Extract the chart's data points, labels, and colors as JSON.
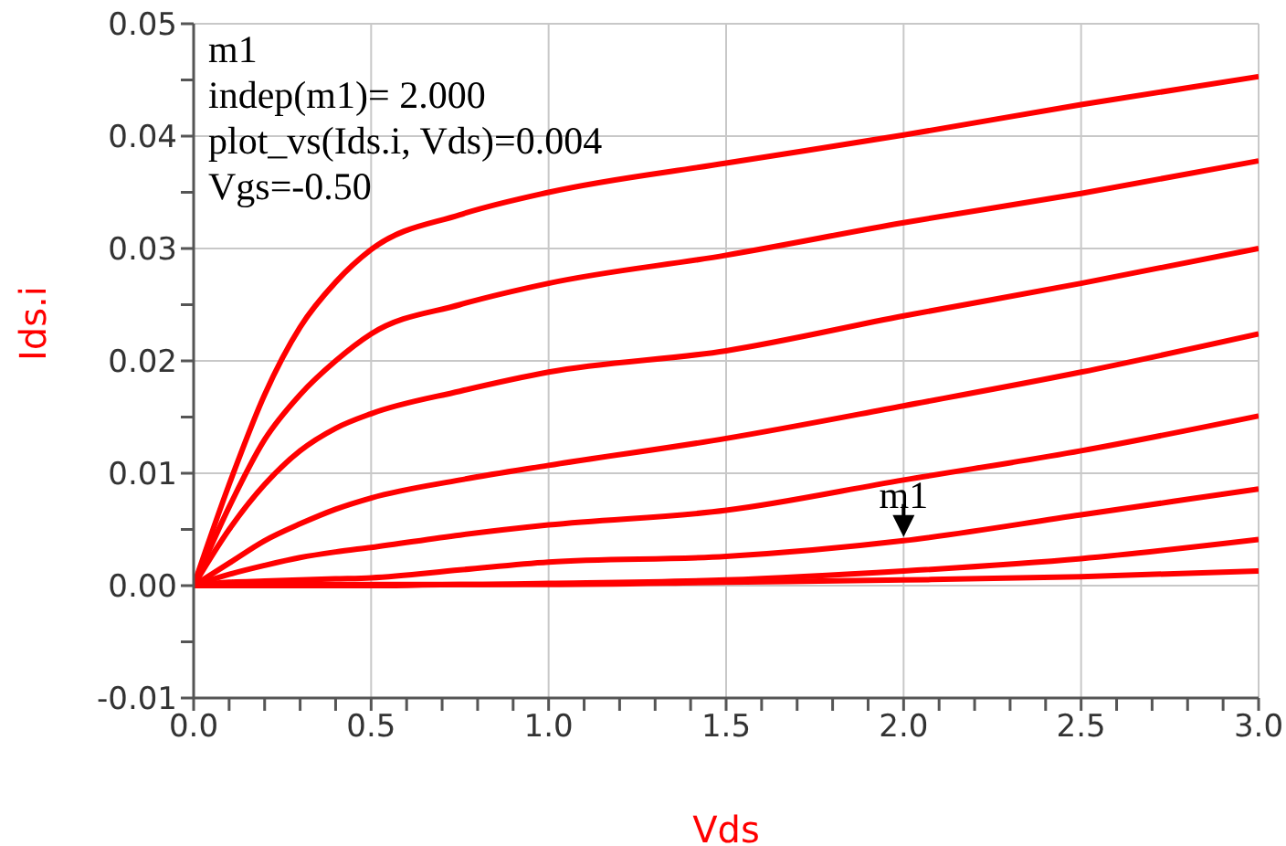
{
  "chart_data": {
    "type": "line",
    "xlabel": "Vds",
    "ylabel": "Ids.i",
    "xlim": [
      0,
      3
    ],
    "ylim": [
      -0.01,
      0.05
    ],
    "xticks": [
      {
        "value": 0,
        "label": "0.0"
      },
      {
        "value": 0.1,
        "label": null
      },
      {
        "value": 0.2,
        "label": null
      },
      {
        "value": 0.3,
        "label": null
      },
      {
        "value": 0.4,
        "label": null
      },
      0.5,
      {
        "value": 0.6,
        "label": null
      },
      {
        "value": 0.7,
        "label": null
      },
      {
        "value": 0.8,
        "label": null
      },
      {
        "value": 0.9,
        "label": null
      },
      {
        "value": 1,
        "label": "1.0"
      },
      {
        "value": 1.1,
        "label": null
      },
      {
        "value": 1.2,
        "label": null
      },
      {
        "value": 1.3,
        "label": null
      },
      {
        "value": 1.4,
        "label": null
      },
      1.5,
      {
        "value": 1.6,
        "label": null
      },
      {
        "value": 1.7,
        "label": null
      },
      {
        "value": 1.8,
        "label": null
      },
      {
        "value": 1.9,
        "label": null
      },
      {
        "value": 2,
        "label": "2.0"
      },
      {
        "value": 2.1,
        "label": null
      },
      {
        "value": 2.2,
        "label": null
      },
      {
        "value": 2.3,
        "label": null
      },
      {
        "value": 2.4,
        "label": null
      },
      2.5,
      {
        "value": 2.6,
        "label": null
      },
      {
        "value": 2.7,
        "label": null
      },
      {
        "value": 2.8,
        "label": null
      },
      {
        "value": 2.9,
        "label": null
      },
      {
        "value": 3,
        "label": "3.0"
      }
    ],
    "yticks": [
      -0.01,
      {
        "value": -0.005,
        "label": null
      },
      {
        "value": 0,
        "label": "0.00"
      },
      {
        "value": 0.005,
        "label": null
      },
      0.01,
      {
        "value": 0.015,
        "label": null
      },
      0.02,
      {
        "value": 0.025,
        "label": null
      },
      0.03,
      {
        "value": 0.035,
        "label": null
      },
      0.04,
      {
        "value": 0.045,
        "label": null
      },
      0.05
    ],
    "grid": true,
    "marker": "none",
    "line_style": "solid",
    "x": [
      0,
      0.1,
      0.2,
      0.3,
      0.4,
      0.5,
      0.75,
      1,
      1.5,
      2,
      2.5,
      3
    ],
    "series": [
      {
        "color": "#ff0000",
        "values": [
          0,
          0.009,
          0.017,
          0.023,
          0.027,
          0.0299,
          0.033,
          0.035,
          0.0376,
          0.0401,
          0.0428,
          0.0453
        ]
      },
      {
        "color": "#ff0000",
        "values": [
          0,
          0.007,
          0.013,
          0.017,
          0.02,
          0.0224,
          0.025,
          0.0269,
          0.0294,
          0.0323,
          0.0349,
          0.0378
        ]
      },
      {
        "color": "#ff0000",
        "values": [
          0,
          0.005,
          0.009,
          0.012,
          0.014,
          0.0153,
          0.0173,
          0.019,
          0.0209,
          0.024,
          0.0269,
          0.03
        ]
      },
      {
        "color": "#ff0000",
        "values": [
          0,
          0.002,
          0.004,
          0.0055,
          0.0068,
          0.0078,
          0.0094,
          0.0107,
          0.0131,
          0.016,
          0.019,
          0.0224
        ]
      },
      {
        "color": "#ff0000",
        "values": [
          0,
          0.001,
          0.0018,
          0.0025,
          0.003,
          0.0034,
          0.0045,
          0.0054,
          0.0067,
          0.0094,
          0.012,
          0.0151
        ]
      },
      {
        "color": "#ff0000",
        "values": [
          0,
          0.0003,
          0.0004,
          0.0005,
          0.0006,
          0.0007,
          0.0014,
          0.0021,
          0.0026,
          0.004,
          0.0063,
          0.0086
        ]
      },
      {
        "color": "#ff0000",
        "values": [
          0,
          0.0001,
          0.0001,
          0.0001,
          0.0001,
          0.0001,
          0.0001,
          0.0002,
          0.0005,
          0.0013,
          0.0024,
          0.0041
        ]
      },
      {
        "color": "#ff0000",
        "values": [
          0,
          0,
          0,
          0,
          0,
          0,
          0.0001,
          0.0001,
          0.0003,
          0.0005,
          0.0008,
          0.0013
        ]
      }
    ],
    "annotations": [
      "m1",
      "indep(m1)= 2.000",
      "plot_vs(Ids.i, Vds)=0.004",
      "Vgs=-0.50",
      {
        "text": "m1",
        "x": 2,
        "y": 0.004
      }
    ]
  }
}
